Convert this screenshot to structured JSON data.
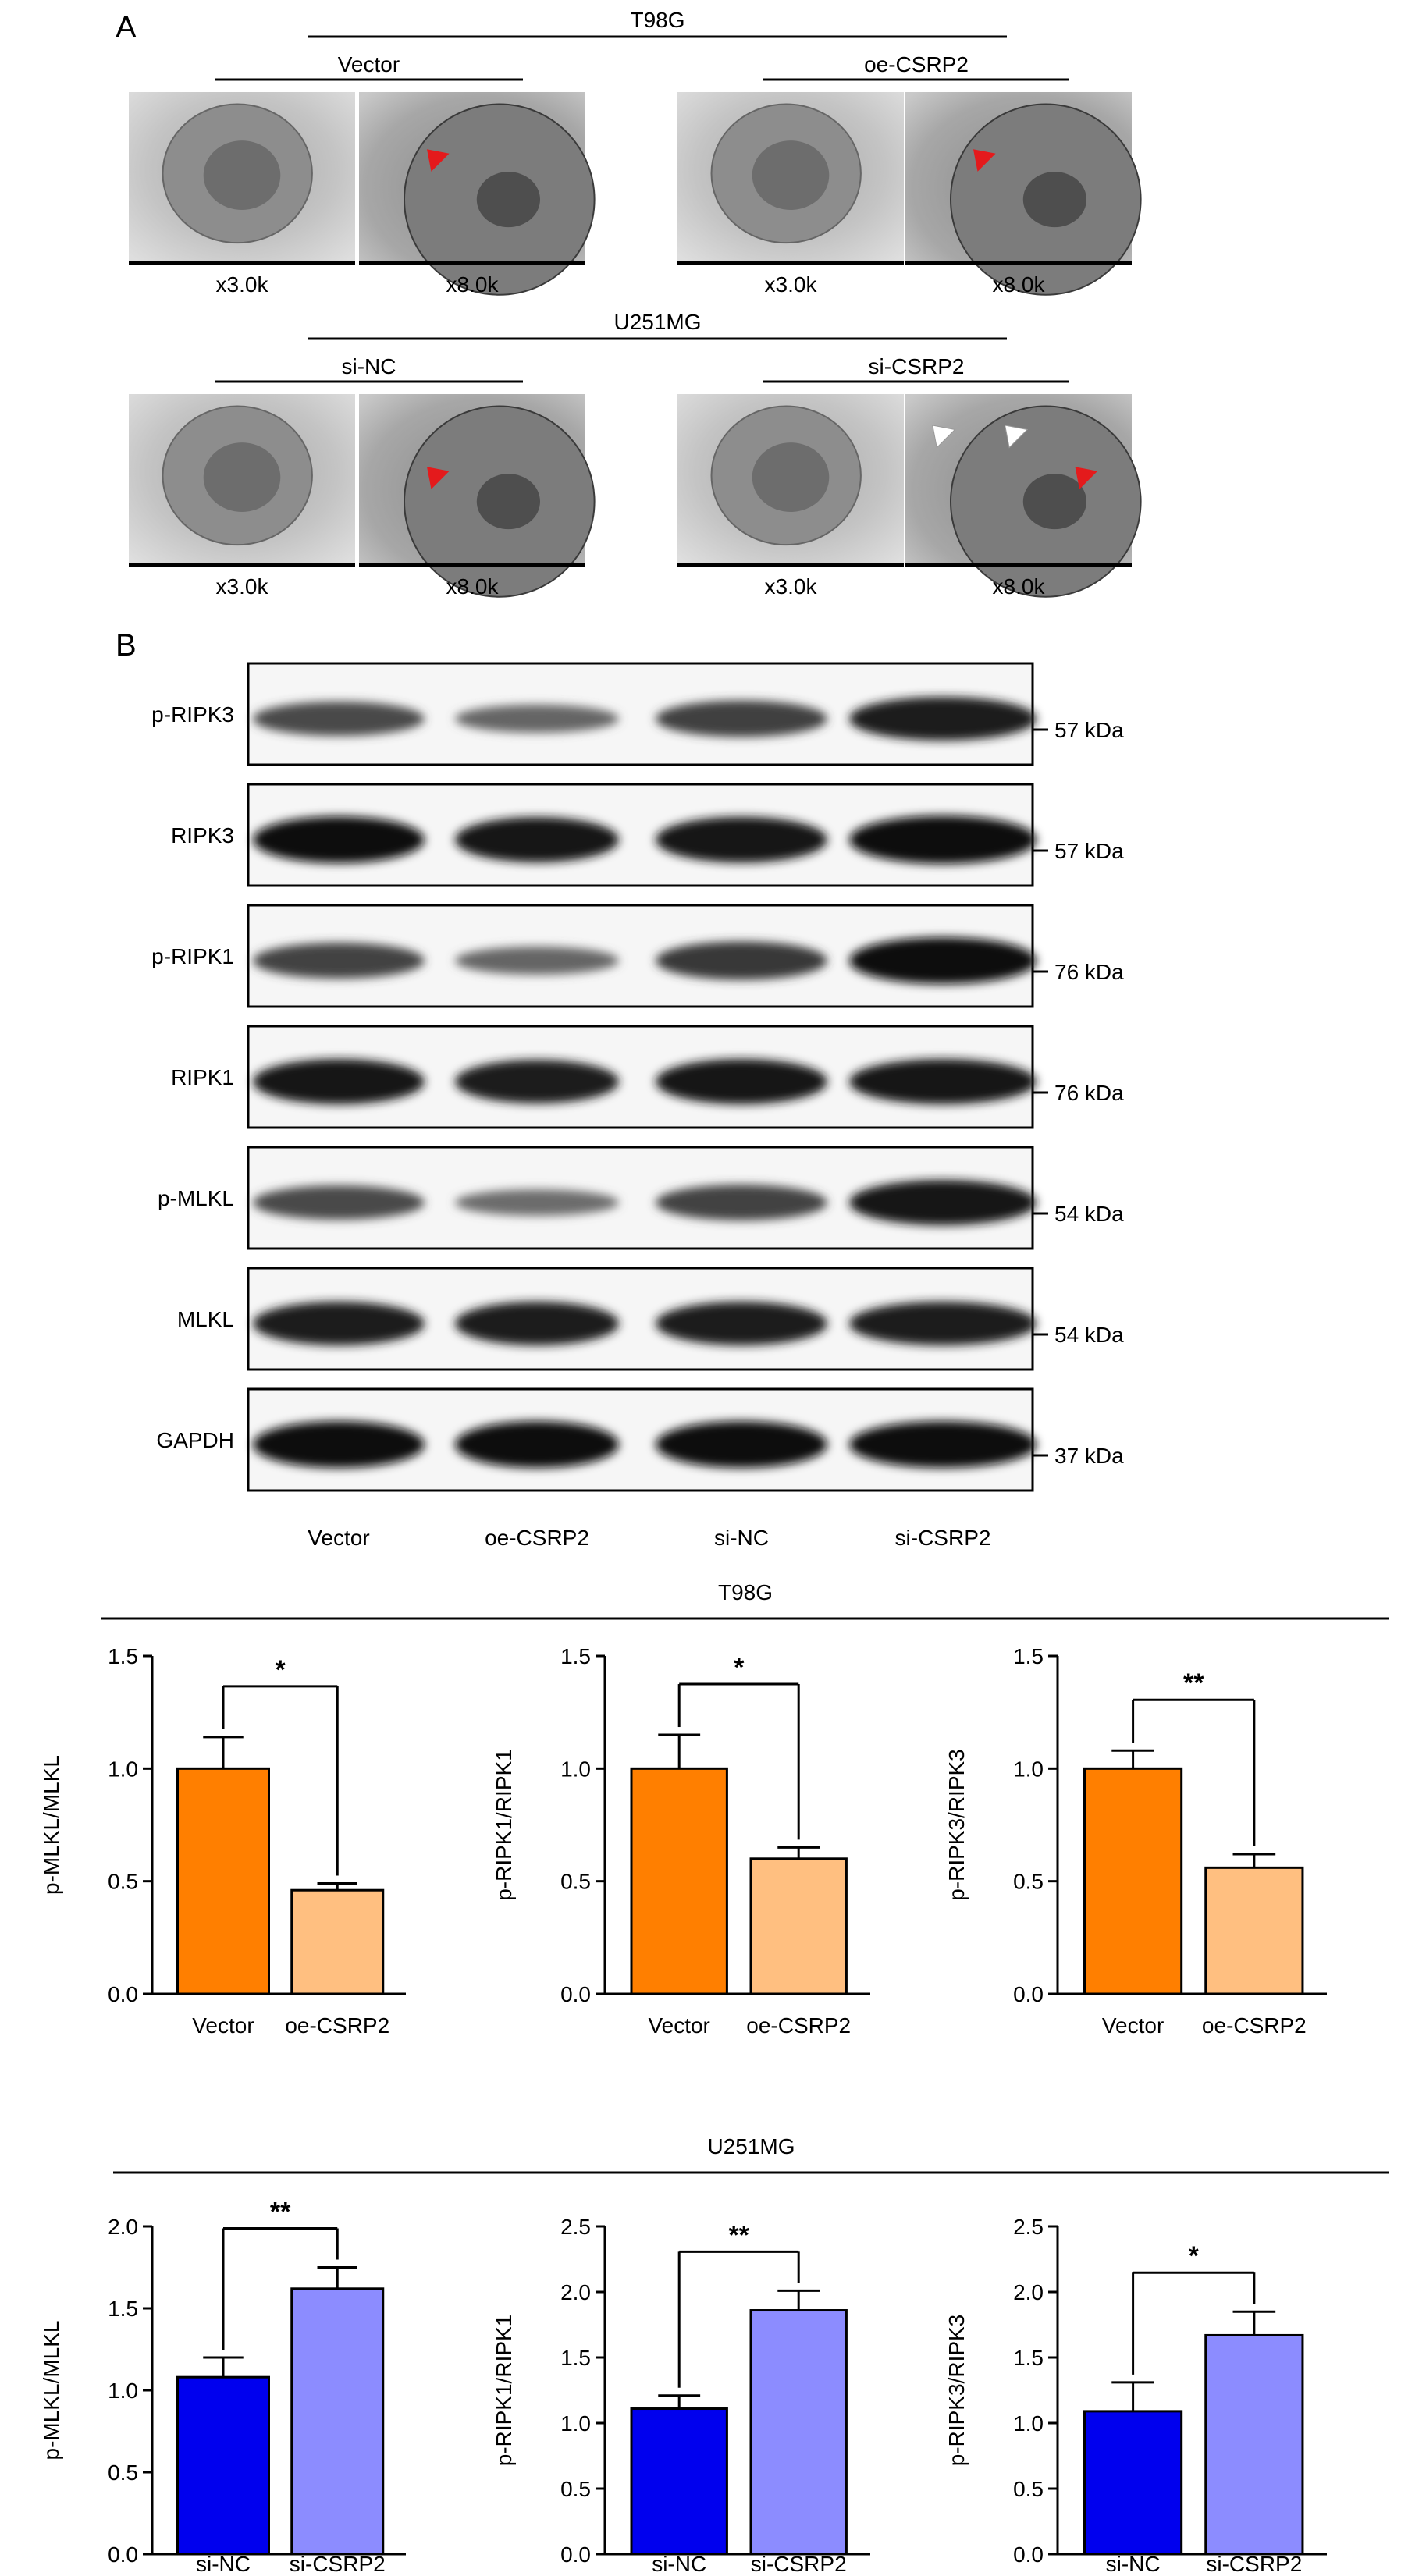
{
  "panel_a": {
    "label": "A",
    "groups": [
      {
        "cell_line": "T98G",
        "conditions": [
          {
            "name": "Vector",
            "images": [
              {
                "mag": "x3.0k",
                "tone": "light",
                "arrows": []
              },
              {
                "mag": "x8.0k",
                "tone": "zoom",
                "arrows": [
                  "red"
                ]
              }
            ]
          },
          {
            "name": "oe-CSRP2",
            "images": [
              {
                "mag": "x3.0k",
                "tone": "light",
                "arrows": []
              },
              {
                "mag": "x8.0k",
                "tone": "zoom",
                "arrows": [
                  "red"
                ]
              }
            ]
          }
        ]
      },
      {
        "cell_line": "U251MG",
        "conditions": [
          {
            "name": "si-NC",
            "images": [
              {
                "mag": "x3.0k",
                "tone": "light",
                "arrows": []
              },
              {
                "mag": "x8.0k",
                "tone": "zoom",
                "arrows": [
                  "red"
                ]
              }
            ]
          },
          {
            "name": "si-CSRP2",
            "images": [
              {
                "mag": "x3.0k",
                "tone": "light",
                "arrows": []
              },
              {
                "mag": "x8.0k",
                "tone": "zoom",
                "arrows": [
                  "white",
                  "white",
                  "red"
                ]
              }
            ]
          }
        ]
      }
    ]
  },
  "panel_b": {
    "label": "B",
    "lanes": [
      "Vector",
      "oe-CSRP2",
      "si-NC",
      "si-CSRP2"
    ],
    "blots": [
      {
        "protein": "p-RIPK3",
        "mw": "57 kDa",
        "intensity": [
          0.55,
          0.35,
          0.62,
          0.85
        ]
      },
      {
        "protein": "RIPK3",
        "mw": "57 kDa",
        "intensity": [
          0.95,
          0.9,
          0.92,
          1.0
        ]
      },
      {
        "protein": "p-RIPK1",
        "mw": "76 kDa",
        "intensity": [
          0.6,
          0.35,
          0.68,
          0.95
        ]
      },
      {
        "protein": "RIPK1",
        "mw": "76 kDa",
        "intensity": [
          0.9,
          0.85,
          0.9,
          0.9
        ]
      },
      {
        "protein": "p-MLKL",
        "mw": "54 kDa",
        "intensity": [
          0.55,
          0.3,
          0.6,
          0.9
        ]
      },
      {
        "protein": "MLKL",
        "mw": "54 kDa",
        "intensity": [
          0.85,
          0.85,
          0.85,
          0.85
        ]
      },
      {
        "protein": "GAPDH",
        "mw": "37 kDa",
        "intensity": [
          0.95,
          0.95,
          0.95,
          0.95
        ]
      }
    ]
  },
  "colors": {
    "vector": "#ff7f00",
    "oe": "#ffbf80",
    "si_nc": "#0000ee",
    "si_csrp2": "#8c8cff"
  },
  "bar_groups": [
    {
      "title": "T98G",
      "charts": [
        0,
        1,
        2
      ]
    },
    {
      "title": "U251MG",
      "charts": [
        3,
        4,
        5
      ]
    }
  ],
  "chart_data": [
    {
      "type": "bar",
      "categories": [
        "Vector",
        "oe-CSRP2"
      ],
      "values": [
        1.0,
        0.46
      ],
      "errors": [
        0.14,
        0.03
      ],
      "colors": [
        "#ff7f00",
        "#ffbf80"
      ],
      "ylabel": "p-MLKL/MLKL",
      "ylim": [
        0,
        1.5
      ],
      "yticks": [
        "0.0",
        "0.5",
        "1.0",
        "1.5"
      ],
      "significance": "*"
    },
    {
      "type": "bar",
      "categories": [
        "Vector",
        "oe-CSRP2"
      ],
      "values": [
        1.0,
        0.6
      ],
      "errors": [
        0.15,
        0.05
      ],
      "colors": [
        "#ff7f00",
        "#ffbf80"
      ],
      "ylabel": "p-RIPK1/RIPK1",
      "ylim": [
        0,
        1.5
      ],
      "yticks": [
        "0.0",
        "0.5",
        "1.0",
        "1.5"
      ],
      "significance": "*"
    },
    {
      "type": "bar",
      "categories": [
        "Vector",
        "oe-CSRP2"
      ],
      "values": [
        1.0,
        0.56
      ],
      "errors": [
        0.08,
        0.06
      ],
      "colors": [
        "#ff7f00",
        "#ffbf80"
      ],
      "ylabel": "p-RIPK3/RIPK3",
      "ylim": [
        0,
        1.5
      ],
      "yticks": [
        "0.0",
        "0.5",
        "1.0",
        "1.5"
      ],
      "significance": "**"
    },
    {
      "type": "bar",
      "categories": [
        "si-NC",
        "si-CSRP2"
      ],
      "values": [
        1.08,
        1.62
      ],
      "errors": [
        0.12,
        0.13
      ],
      "colors": [
        "#0000ee",
        "#8c8cff"
      ],
      "ylabel": "p-MLKL/MLKL",
      "ylim": [
        0,
        2.0
      ],
      "yticks": [
        "0.0",
        "0.5",
        "1.0",
        "1.5",
        "2.0"
      ],
      "significance": "**"
    },
    {
      "type": "bar",
      "categories": [
        "si-NC",
        "si-CSRP2"
      ],
      "values": [
        1.11,
        1.86
      ],
      "errors": [
        0.1,
        0.15
      ],
      "colors": [
        "#0000ee",
        "#8c8cff"
      ],
      "ylabel": "p-RIPK1/RIPK1",
      "ylim": [
        0,
        2.5
      ],
      "yticks": [
        "0.0",
        "0.5",
        "1.0",
        "1.5",
        "2.0",
        "2.5"
      ],
      "significance": "**"
    },
    {
      "type": "bar",
      "categories": [
        "si-NC",
        "si-CSRP2"
      ],
      "values": [
        1.09,
        1.67
      ],
      "errors": [
        0.22,
        0.18
      ],
      "colors": [
        "#0000ee",
        "#8c8cff"
      ],
      "ylabel": "p-RIPK3/RIPK3",
      "ylim": [
        0,
        2.5
      ],
      "yticks": [
        "0.0",
        "0.5",
        "1.0",
        "1.5",
        "2.0",
        "2.5"
      ],
      "significance": "*"
    }
  ]
}
